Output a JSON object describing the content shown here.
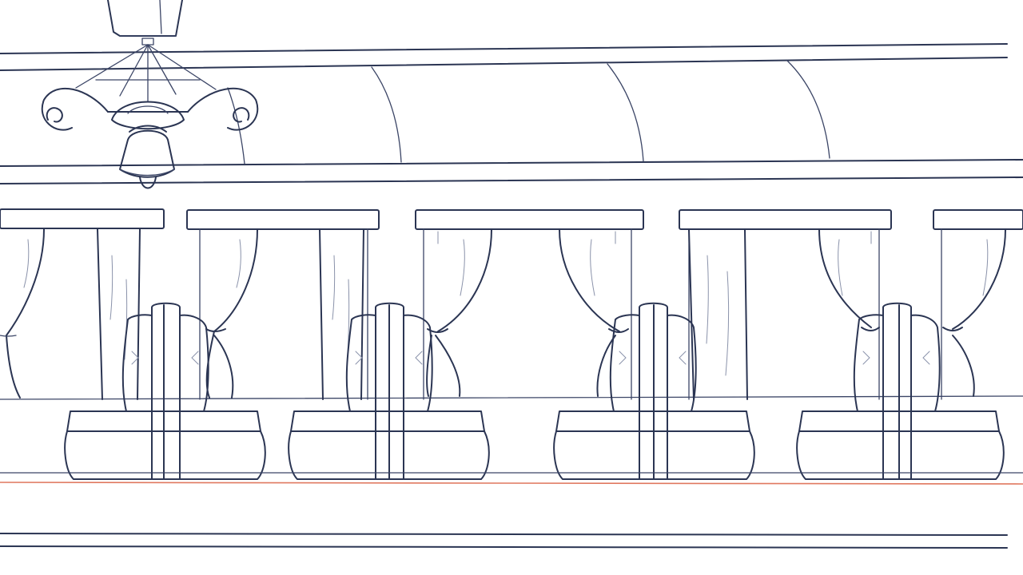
{
  "artwork": {
    "subject": "pencil-sketch",
    "colors": {
      "ink": "#2b3553",
      "guide_line": "#e0785f",
      "paper": "#ffffff"
    },
    "booth_count": 4,
    "arch_count": 4
  }
}
